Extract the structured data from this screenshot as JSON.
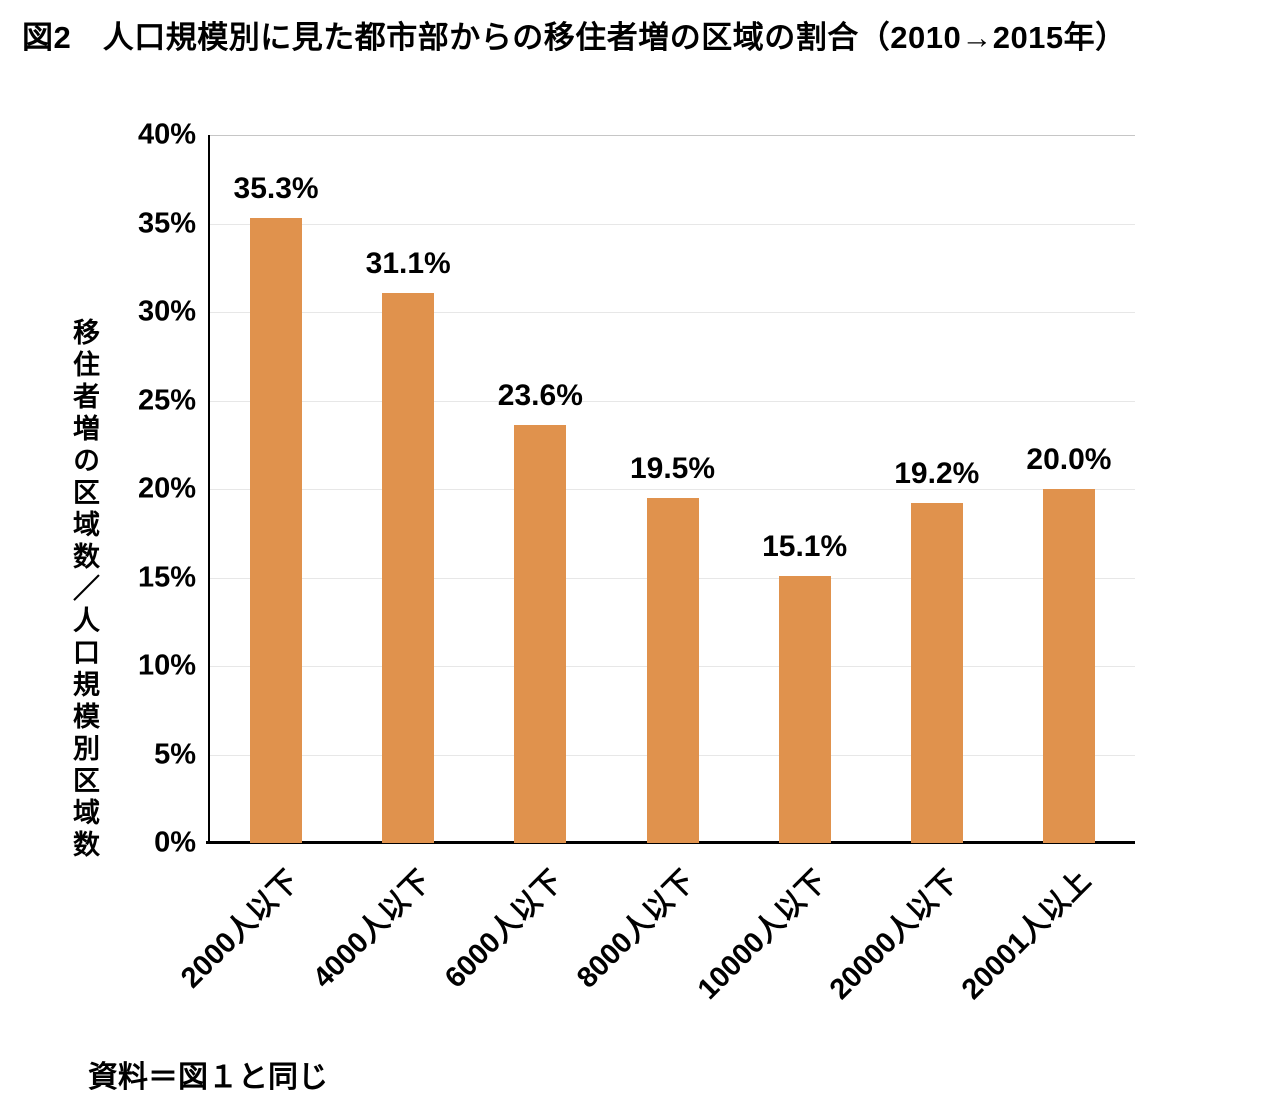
{
  "chart_data": {
    "type": "bar",
    "title": "図2　人口規模別に見た都市部からの移住者増の区域の割合（2010→2015年）",
    "categories": [
      "2000人以下",
      "4000人以下",
      "6000人以下",
      "8000人以下",
      "10000人以下",
      "20000人以下",
      "20001人以上"
    ],
    "values": [
      35.3,
      31.1,
      23.6,
      19.5,
      15.1,
      19.2,
      20.0
    ],
    "value_labels": [
      "35.3%",
      "31.1%",
      "23.6%",
      "19.5%",
      "15.1%",
      "19.2%",
      "20.0%"
    ],
    "ylabel": "移住者増の区域数／人口規模別区域数",
    "xlabel": "",
    "ylim": [
      0,
      40
    ],
    "ytick_values": [
      0,
      5,
      10,
      15,
      20,
      25,
      30,
      35,
      40
    ],
    "ytick_labels": [
      "0%",
      "5%",
      "10%",
      "15%",
      "20%",
      "25%",
      "30%",
      "35%",
      "40%"
    ],
    "bar_color": "#E0924D",
    "grid": "horizontal",
    "legend": "none",
    "source": "資料＝図１と同じ"
  }
}
